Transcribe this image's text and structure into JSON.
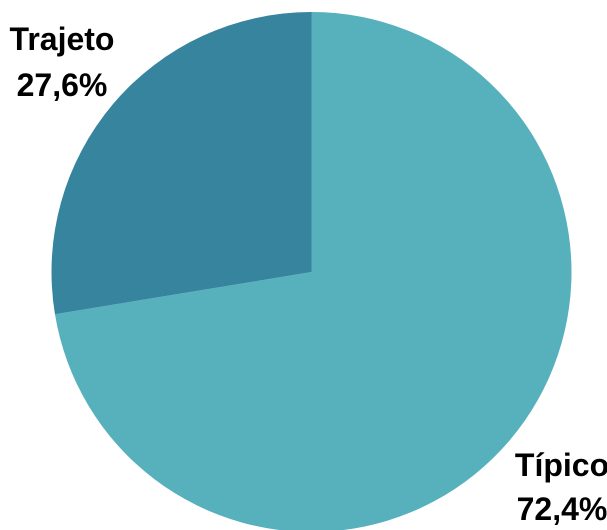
{
  "chart_data": {
    "type": "pie",
    "title": "",
    "start_angle_deg": 0,
    "direction": "clockwise",
    "slices": [
      {
        "label": "Típico",
        "value": 72.4,
        "value_text": "72,4%",
        "color": "#56b1bd"
      },
      {
        "label": "Trajeto",
        "value": 27.6,
        "value_text": "27,6%",
        "color": "#36849e"
      }
    ],
    "legend": "none"
  }
}
